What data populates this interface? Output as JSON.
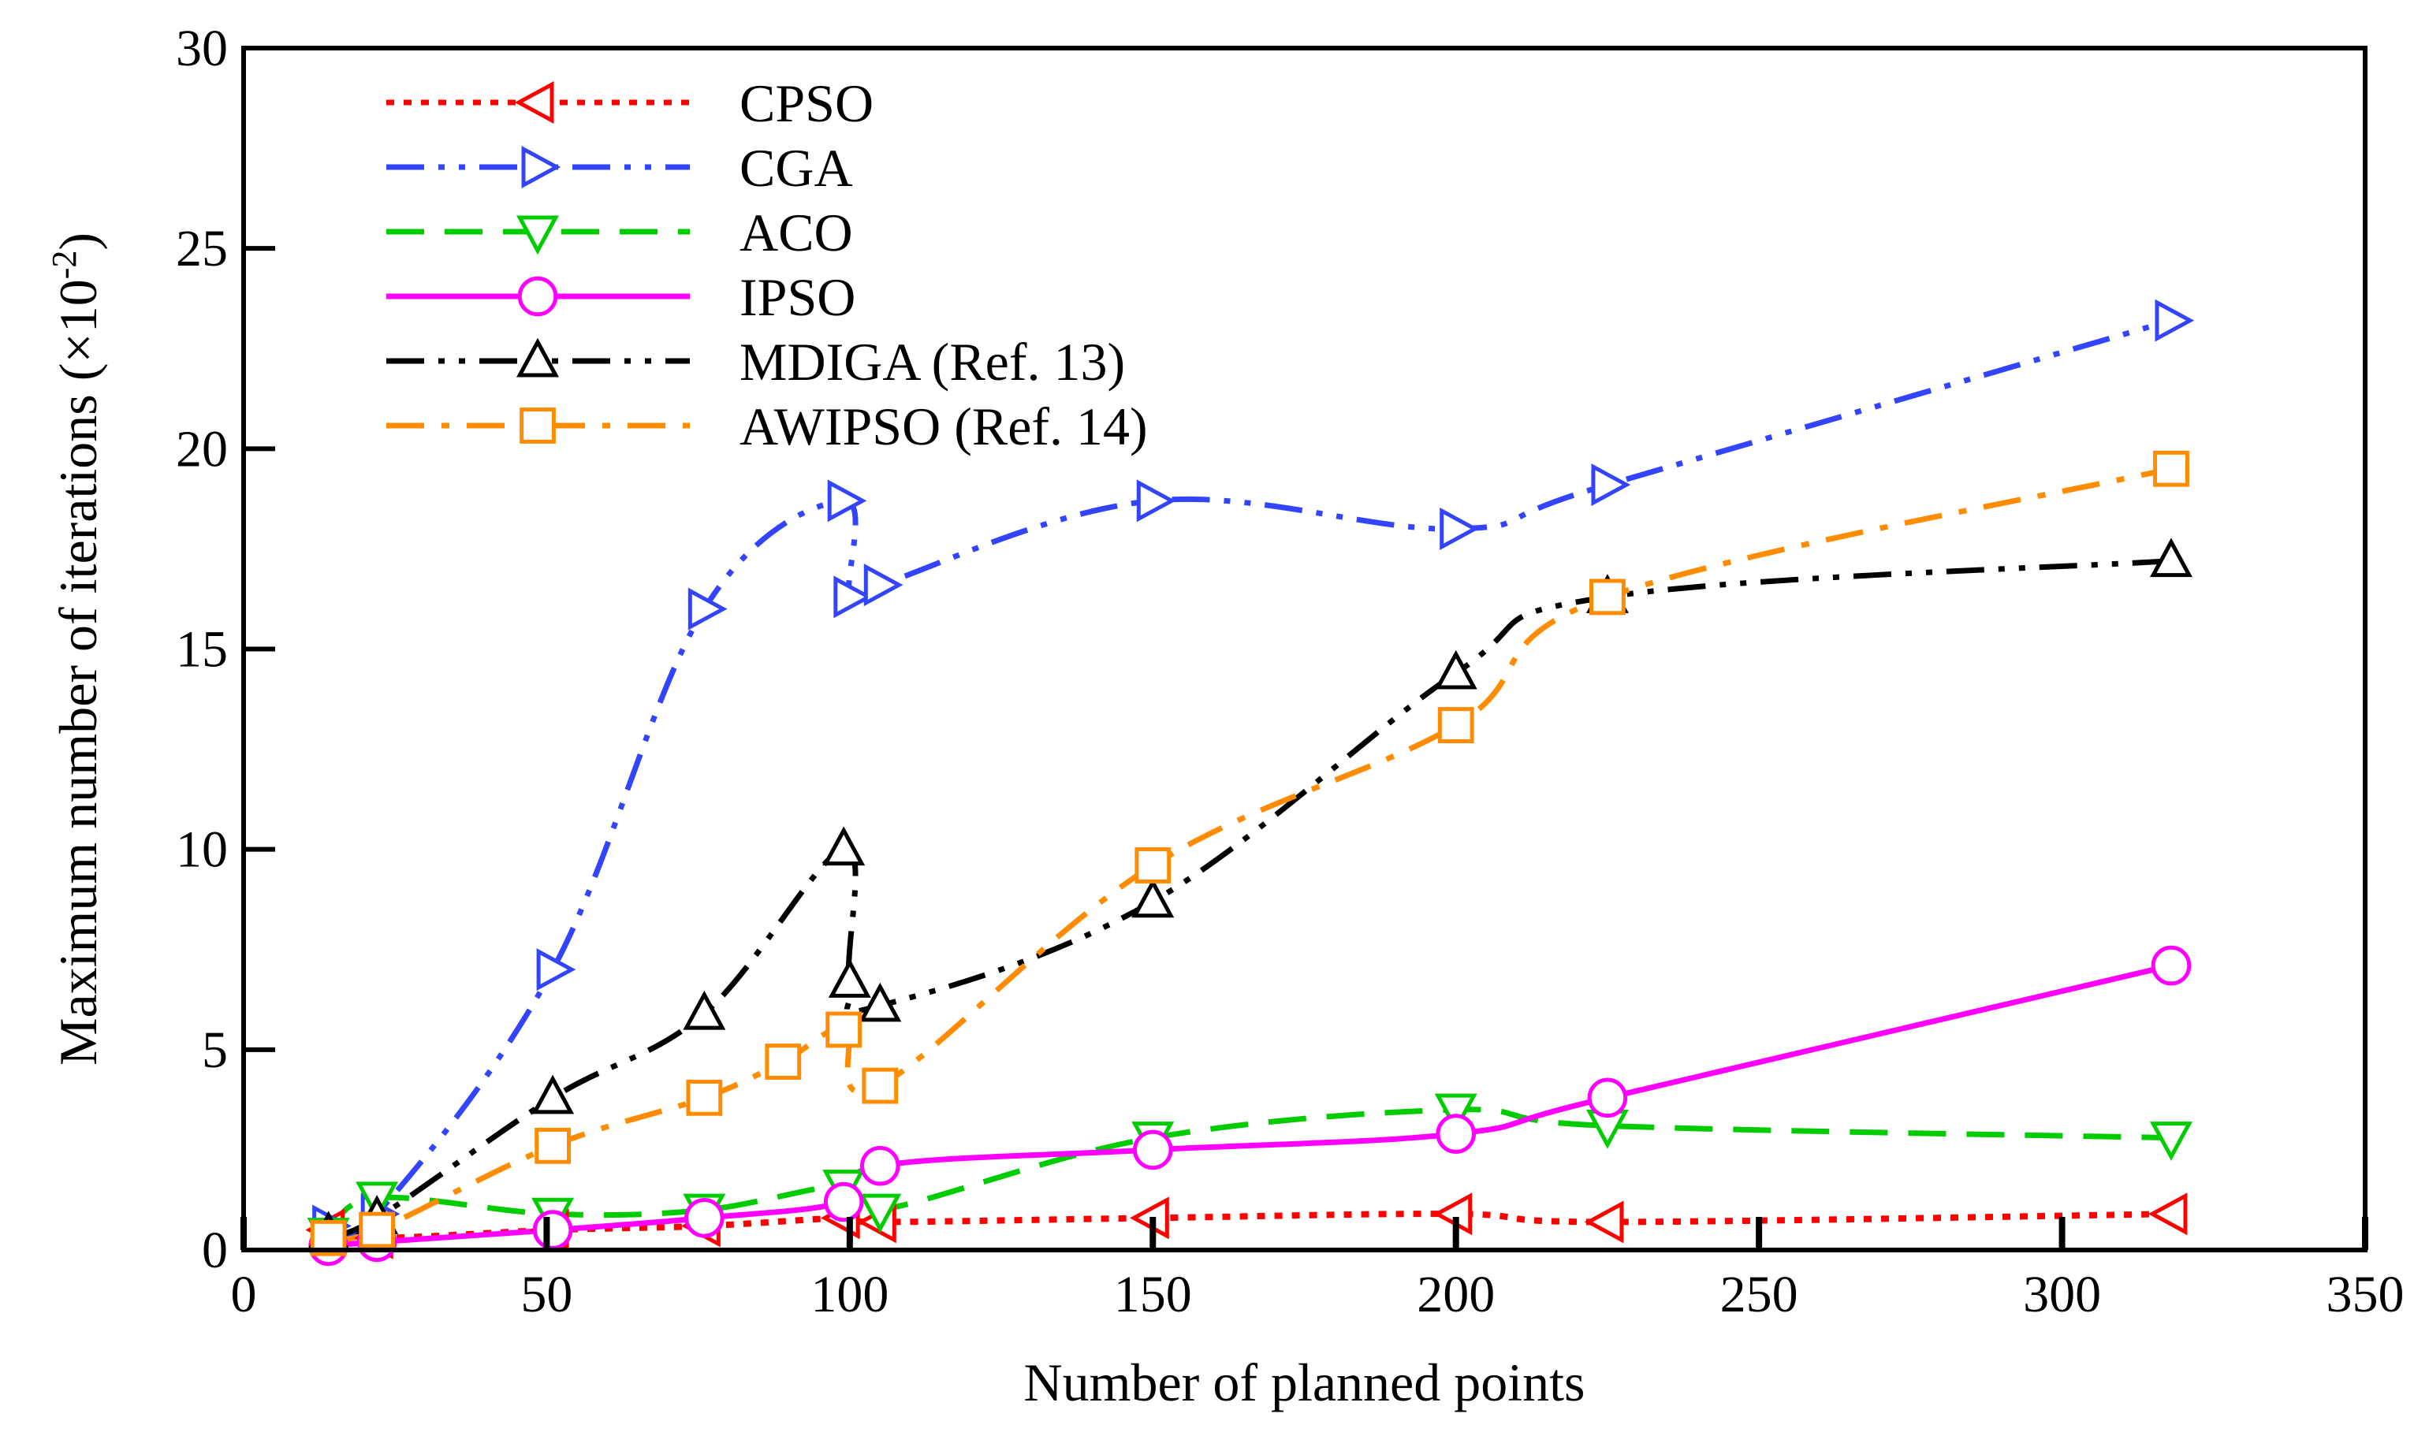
{
  "chart_data": {
    "type": "line",
    "title": "",
    "xlabel": "Number of planned points",
    "ylabel_main": "Maximum number of iterations (×10",
    "ylabel_exp": "-2",
    "ylabel_close": ")",
    "xlim": [
      0,
      350
    ],
    "ylim": [
      0,
      30
    ],
    "xticks": [
      0,
      50,
      100,
      150,
      200,
      250,
      300,
      350
    ],
    "yticks": [
      0,
      5,
      10,
      15,
      20,
      25,
      30
    ],
    "grid": false,
    "legend_position": "top-left",
    "series": [
      {
        "name": "CPSO",
        "color": "#ff0000",
        "linestyle": "dotted",
        "marker": "triangle-left",
        "x": [
          14,
          22,
          51,
          76,
          99,
          105,
          150,
          200,
          225,
          318
        ],
        "y": [
          0.5,
          0.3,
          0.5,
          0.6,
          0.8,
          0.7,
          0.8,
          0.9,
          0.7,
          0.9
        ]
      },
      {
        "name": "CGA",
        "color": "#3344ff",
        "linestyle": "dashdotdot",
        "marker": "triangle-right",
        "x": [
          14,
          22,
          51,
          76,
          99,
          100,
          105,
          150,
          200,
          225,
          318
        ],
        "y": [
          0.6,
          0.9,
          7.0,
          16.0,
          18.7,
          16.3,
          16.6,
          18.7,
          18.0,
          19.1,
          23.2
        ]
      },
      {
        "name": "ACO",
        "color": "#00cc00",
        "linestyle": "dashed",
        "marker": "triangle-down",
        "x": [
          14,
          22,
          51,
          76,
          99,
          105,
          150,
          200,
          225,
          318
        ],
        "y": [
          0.4,
          1.3,
          0.9,
          1.0,
          1.6,
          1.0,
          2.8,
          3.5,
          3.1,
          2.8
        ]
      },
      {
        "name": "IPSO",
        "color": "#ff00ff",
        "linestyle": "solid",
        "marker": "circle",
        "x": [
          14,
          22,
          51,
          76,
          99,
          105,
          150,
          200,
          225,
          318
        ],
        "y": [
          0.1,
          0.2,
          0.5,
          0.8,
          1.2,
          2.1,
          2.5,
          2.9,
          3.8,
          7.1
        ]
      },
      {
        "name": "MDIGA (Ref. 13)",
        "color": "#000000",
        "linestyle": "dashdotdot",
        "marker": "triangle-up",
        "x": [
          14,
          22,
          51,
          76,
          99,
          100,
          105,
          150,
          200,
          225,
          318
        ],
        "y": [
          0.4,
          0.8,
          3.8,
          5.9,
          10.0,
          6.7,
          6.1,
          8.7,
          14.4,
          16.3,
          17.2
        ]
      },
      {
        "name": "AWIPSO (Ref. 14)",
        "color": "#ff8c00",
        "linestyle": "dashdot",
        "marker": "square",
        "x": [
          14,
          22,
          51,
          76,
          89,
          99,
          105,
          150,
          200,
          225,
          318
        ],
        "y": [
          0.3,
          0.5,
          2.6,
          3.8,
          4.7,
          5.5,
          4.1,
          9.6,
          13.1,
          16.3,
          19.5
        ]
      }
    ]
  }
}
